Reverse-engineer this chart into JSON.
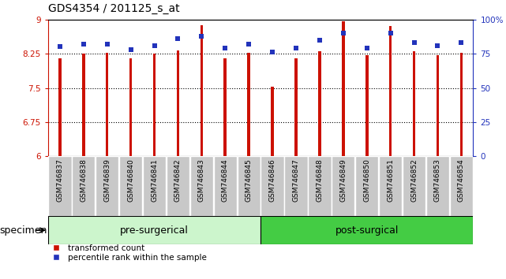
{
  "title": "GDS4354 / 201125_s_at",
  "samples": [
    "GSM746837",
    "GSM746838",
    "GSM746839",
    "GSM746840",
    "GSM746841",
    "GSM746842",
    "GSM746843",
    "GSM746844",
    "GSM746845",
    "GSM746846",
    "GSM746847",
    "GSM746848",
    "GSM746849",
    "GSM746850",
    "GSM746851",
    "GSM746852",
    "GSM746853",
    "GSM746854"
  ],
  "bar_values": [
    8.15,
    8.25,
    8.27,
    8.15,
    8.25,
    8.32,
    8.88,
    8.15,
    8.27,
    7.53,
    8.15,
    8.31,
    8.97,
    8.22,
    8.85,
    8.3,
    8.22,
    8.27
  ],
  "dot_values": [
    80,
    82,
    82,
    78,
    81,
    86,
    88,
    79,
    82,
    76,
    79,
    85,
    90,
    79,
    90,
    83,
    81,
    83
  ],
  "ylim_left": [
    6,
    9
  ],
  "ylim_right": [
    0,
    100
  ],
  "yticks_left": [
    6,
    6.75,
    7.5,
    8.25,
    9
  ],
  "ytick_labels_left": [
    "6",
    "6.75",
    "7.5",
    "8.25",
    "9"
  ],
  "yticks_right": [
    0,
    25,
    50,
    75,
    100
  ],
  "ytick_labels_right": [
    "0",
    "25",
    "50",
    "75",
    "100%"
  ],
  "bar_color": "#cc1100",
  "dot_color": "#2233bb",
  "pre_surgical_count": 9,
  "post_surgical_count": 9,
  "group_label_pre": "pre-surgerical",
  "group_label_post": "post-surgical",
  "specimen_label": "specimen",
  "legend_bar_label": "transformed count",
  "legend_dot_label": "percentile rank within the sample",
  "background_xlabel": "#c8c8c8",
  "background_pre": "#ccf5cc",
  "background_post": "#44cc44",
  "title_fontsize": 10,
  "tick_fontsize": 7.5,
  "label_fontsize": 9,
  "sample_fontsize": 6.5
}
